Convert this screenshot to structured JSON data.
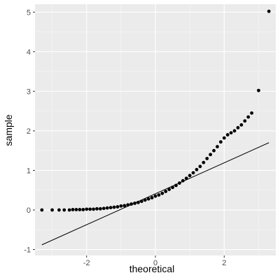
{
  "chart_data": {
    "type": "scatter",
    "title": "",
    "xlabel": "theoretical",
    "ylabel": "sample",
    "xlim": [
      -3.5,
      3.5
    ],
    "ylim": [
      -1.15,
      5.2
    ],
    "x_ticks": [
      -2,
      0,
      2
    ],
    "y_ticks": [
      -1,
      0,
      1,
      2,
      3,
      4,
      5
    ],
    "x_tick_labels": [
      "-2",
      "0",
      "2"
    ],
    "y_tick_labels": [
      "-1",
      "0",
      "1",
      "2",
      "3",
      "4",
      "5"
    ],
    "grid": true,
    "legend": "none",
    "colors": {
      "panel": "#ebebeb",
      "grid_major": "#ffffff",
      "points": "#000000",
      "reference_line": "#000000"
    },
    "reference_line": {
      "x": [
        -3.3,
        3.3
      ],
      "y": [
        -0.88,
        1.7
      ]
    },
    "series": [
      {
        "values": [
          [
            -3.3,
            0.0
          ],
          [
            -3.0,
            0.0
          ],
          [
            -2.8,
            0.0
          ],
          [
            -2.65,
            0.0
          ],
          [
            -2.5,
            0.0
          ],
          [
            -2.4,
            0.01
          ],
          [
            -2.3,
            0.01
          ],
          [
            -2.2,
            0.01
          ],
          [
            -2.1,
            0.01
          ],
          [
            -2.0,
            0.02
          ],
          [
            -1.9,
            0.02
          ],
          [
            -1.8,
            0.02
          ],
          [
            -1.7,
            0.03
          ],
          [
            -1.6,
            0.03
          ],
          [
            -1.5,
            0.04
          ],
          [
            -1.4,
            0.05
          ],
          [
            -1.3,
            0.06
          ],
          [
            -1.2,
            0.07
          ],
          [
            -1.1,
            0.08
          ],
          [
            -1.0,
            0.1
          ],
          [
            -0.9,
            0.11
          ],
          [
            -0.8,
            0.13
          ],
          [
            -0.7,
            0.15
          ],
          [
            -0.6,
            0.17
          ],
          [
            -0.5,
            0.19
          ],
          [
            -0.4,
            0.22
          ],
          [
            -0.3,
            0.25
          ],
          [
            -0.2,
            0.28
          ],
          [
            -0.1,
            0.31
          ],
          [
            0.0,
            0.35
          ],
          [
            0.1,
            0.38
          ],
          [
            0.2,
            0.42
          ],
          [
            0.3,
            0.47
          ],
          [
            0.4,
            0.52
          ],
          [
            0.5,
            0.57
          ],
          [
            0.6,
            0.62
          ],
          [
            0.7,
            0.68
          ],
          [
            0.8,
            0.74
          ],
          [
            0.9,
            0.8
          ],
          [
            1.0,
            0.87
          ],
          [
            1.1,
            0.94
          ],
          [
            1.2,
            1.02
          ],
          [
            1.3,
            1.1
          ],
          [
            1.4,
            1.2
          ],
          [
            1.5,
            1.3
          ],
          [
            1.6,
            1.4
          ],
          [
            1.7,
            1.5
          ],
          [
            1.8,
            1.6
          ],
          [
            1.9,
            1.72
          ],
          [
            2.0,
            1.82
          ],
          [
            2.1,
            1.9
          ],
          [
            2.2,
            1.95
          ],
          [
            2.3,
            2.0
          ],
          [
            2.4,
            2.08
          ],
          [
            2.5,
            2.15
          ],
          [
            2.6,
            2.25
          ],
          [
            2.7,
            2.35
          ],
          [
            2.8,
            2.45
          ],
          [
            3.0,
            3.02
          ],
          [
            3.3,
            5.02
          ]
        ]
      }
    ]
  }
}
